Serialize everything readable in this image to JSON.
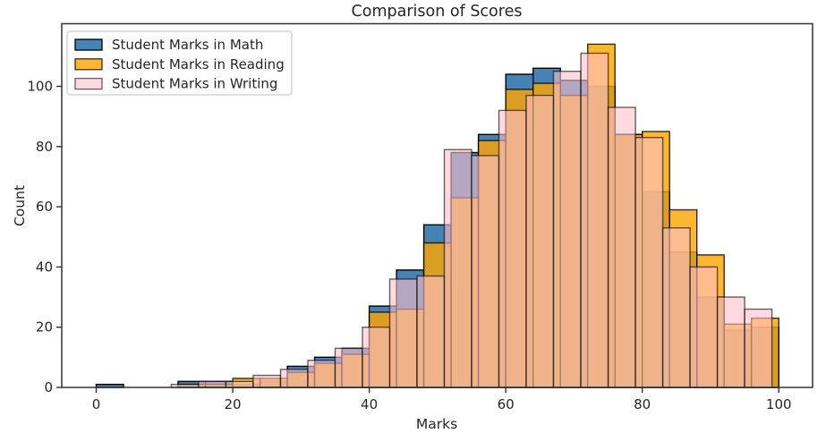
{
  "chart_data": {
    "type": "histogram",
    "title": "Comparison of Scores",
    "xlabel": "Marks",
    "ylabel": "Count",
    "xlim": [
      -5.05,
      104.95
    ],
    "ylim": [
      0,
      120.8
    ],
    "xticks": [
      0,
      20,
      40,
      60,
      80,
      100
    ],
    "yticks": [
      0,
      20,
      40,
      60,
      80,
      100
    ],
    "grid": false,
    "bin_width": 4,
    "legend_position": "upper-left",
    "series": [
      {
        "name": "Student Marks in Math",
        "color": "#4682B4",
        "alpha": 1.0,
        "edge_color": "#000000",
        "bin_start": 0,
        "counts": [
          1,
          0,
          0,
          2,
          2,
          1,
          2,
          7,
          10,
          13,
          27,
          39,
          54,
          78,
          84,
          104,
          106,
          102,
          100,
          84,
          65,
          45,
          30,
          19,
          20
        ]
      },
      {
        "name": "Student Marks in Reading",
        "color": "#FFA500",
        "alpha": 0.8,
        "edge_color": "#000000",
        "bin_start": 0,
        "counts": [
          0,
          0,
          0,
          1,
          1,
          3,
          3,
          5,
          8,
          11,
          25,
          26,
          48,
          63,
          82,
          99,
          101,
          97,
          114,
          84,
          85,
          59,
          44,
          21,
          23
        ]
      },
      {
        "name": "Student Marks in Writing",
        "color": "#FFC0CB",
        "alpha": 0.6,
        "edge_color": "#000000",
        "bin_start": -1,
        "counts": [
          0,
          0,
          0,
          1,
          2,
          2,
          4,
          6,
          9,
          13,
          20,
          36,
          37,
          79,
          77,
          92,
          97,
          105,
          111,
          93,
          83,
          53,
          40,
          30,
          26
        ]
      }
    ]
  }
}
